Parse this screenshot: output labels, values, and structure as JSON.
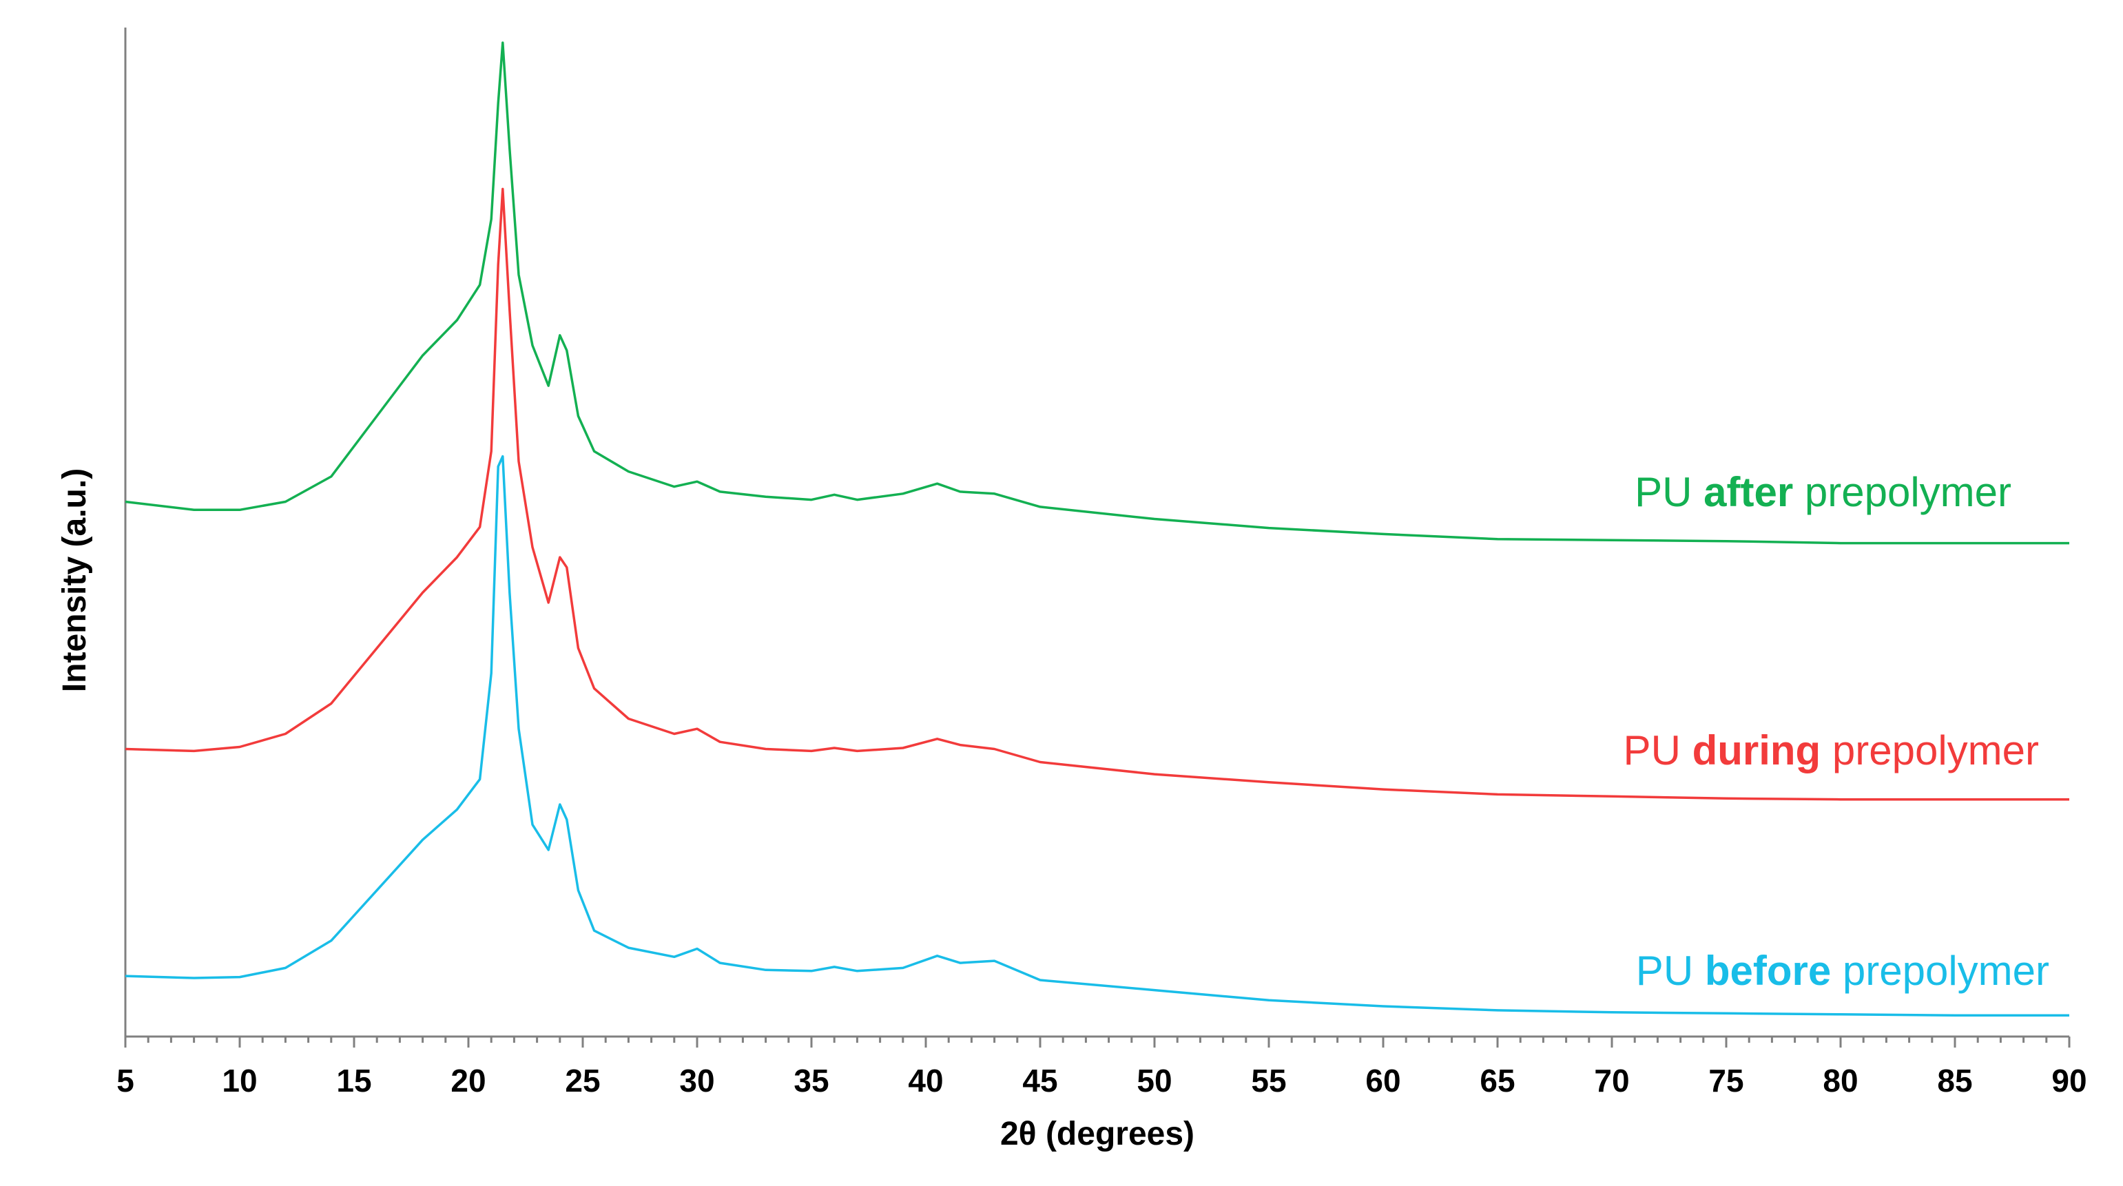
{
  "chart_data": {
    "type": "line",
    "title": "",
    "xlabel": "2θ (degrees)",
    "ylabel": "Intensity (a.u.)",
    "xlim": [
      5,
      90
    ],
    "ylim": [
      0,
      100
    ],
    "y_ticks_shown": false,
    "grid": false,
    "x_ticks": [
      5,
      10,
      15,
      20,
      25,
      30,
      35,
      40,
      45,
      50,
      55,
      60,
      65,
      70,
      75,
      80,
      85,
      90
    ],
    "x_tick_labels": [
      "5",
      "10",
      "15",
      "20",
      "25",
      "30",
      "35",
      "40",
      "45",
      "50",
      "55",
      "60",
      "65",
      "70",
      "75",
      "80",
      "85",
      "90"
    ],
    "series": [
      {
        "name": "PU after prepolymer",
        "label_prefix": "PU",
        "label_bold": "after",
        "label_suffix": "prepolymer",
        "color": "#13b052",
        "x": [
          5,
          8,
          10,
          12,
          14,
          16,
          18,
          19.5,
          20.5,
          21,
          21.3,
          21.5,
          21.8,
          22.2,
          22.8,
          23.5,
          24,
          24.3,
          24.8,
          25.5,
          27,
          29,
          30,
          31,
          33,
          35,
          36,
          37,
          39,
          40.5,
          41.5,
          43,
          45,
          50,
          55,
          60,
          65,
          70,
          75,
          80,
          85,
          90
        ],
        "y": [
          53.0,
          52.2,
          52.2,
          53.0,
          55.5,
          61.5,
          67.5,
          71.0,
          74.5,
          81.0,
          92.5,
          98.5,
          88.0,
          75.5,
          68.5,
          64.5,
          69.5,
          68.0,
          61.5,
          58.0,
          56.0,
          54.5,
          55.0,
          54.0,
          53.5,
          53.2,
          53.7,
          53.2,
          53.8,
          54.8,
          54.0,
          53.8,
          52.5,
          51.3,
          50.4,
          49.8,
          49.3,
          49.2,
          49.1,
          48.9,
          48.9,
          48.9
        ]
      },
      {
        "name": "PU during prepolymer",
        "label_prefix": "PU",
        "label_bold": "during",
        "label_suffix": "prepolymer",
        "color": "#f23b3b",
        "x": [
          5,
          8,
          10,
          12,
          14,
          16,
          18,
          19.5,
          20.5,
          21,
          21.3,
          21.5,
          21.8,
          22.2,
          22.8,
          23.5,
          24,
          24.3,
          24.8,
          25.5,
          27,
          29,
          30,
          31,
          33,
          35,
          36,
          37,
          39,
          40.5,
          41.5,
          43,
          45,
          50,
          55,
          60,
          65,
          70,
          75,
          80,
          85,
          90
        ],
        "y": [
          28.5,
          28.3,
          28.7,
          30.0,
          33.0,
          38.5,
          44.0,
          47.5,
          50.5,
          58.0,
          76.5,
          84.0,
          72.0,
          57.0,
          48.5,
          43.0,
          47.5,
          46.5,
          38.5,
          34.5,
          31.5,
          30.0,
          30.5,
          29.2,
          28.5,
          28.3,
          28.6,
          28.3,
          28.6,
          29.5,
          28.9,
          28.5,
          27.2,
          26.0,
          25.2,
          24.5,
          24.0,
          23.8,
          23.6,
          23.5,
          23.5,
          23.5
        ]
      },
      {
        "name": "PU before prepolymer",
        "label_prefix": "PU",
        "label_bold": "before",
        "label_suffix": "prepolymer",
        "color": "#19bde8",
        "x": [
          5,
          8,
          10,
          12,
          14,
          16,
          18,
          19.5,
          20.5,
          21,
          21.3,
          21.5,
          21.8,
          22.2,
          22.8,
          23.5,
          24,
          24.3,
          24.8,
          25.5,
          27,
          29,
          30,
          31,
          33,
          35,
          36,
          37,
          39,
          40.5,
          41.5,
          43,
          45,
          50,
          55,
          60,
          65,
          70,
          75,
          80,
          85,
          90
        ],
        "y": [
          6.0,
          5.8,
          5.9,
          6.8,
          9.5,
          14.5,
          19.5,
          22.5,
          25.5,
          36.0,
          56.5,
          57.5,
          44.0,
          30.5,
          21.0,
          18.5,
          23.0,
          21.5,
          14.5,
          10.5,
          8.8,
          7.9,
          8.7,
          7.3,
          6.6,
          6.5,
          6.9,
          6.5,
          6.8,
          8.0,
          7.3,
          7.5,
          5.6,
          4.6,
          3.6,
          3.0,
          2.6,
          2.4,
          2.3,
          2.2,
          2.1,
          2.1
        ]
      }
    ]
  }
}
